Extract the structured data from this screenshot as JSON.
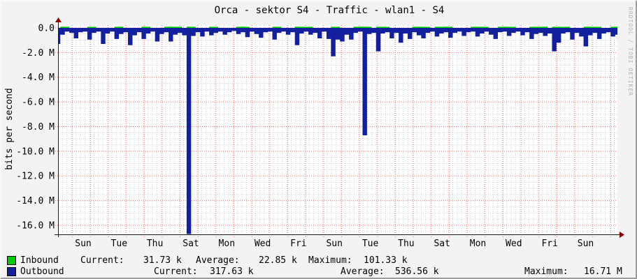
{
  "watermark": "RRDTOOL / TOBI OETIKER",
  "chart_data": {
    "type": "area",
    "title": "Orca - sektor S4 - Traffic - wlan1 - S4",
    "ylabel": "bits per second",
    "legend_position": "bottom-left",
    "grid": true,
    "x_span_days": 31,
    "sample_step_days": 0.25,
    "x_tick_labels": [
      "Sun",
      "Tue",
      "Thu",
      "Sat",
      "Mon",
      "Wed",
      "Fri",
      "Sun",
      "Tue",
      "Thu",
      "Sat",
      "Mon",
      "Wed",
      "Fri",
      "Sun"
    ],
    "y_tick_labels": [
      "0.0",
      "-2.0 M",
      "-4.0 M",
      "-6.0 M",
      "-8.0 M",
      "-10.0 M",
      "-12.0 M",
      "-14.0 M",
      "-16.0 M"
    ],
    "ylim_bps": [
      -16710000,
      150000
    ],
    "series": [
      {
        "name": "Inbound",
        "color": "#00cb00",
        "direction": "positive",
        "unit": "kbps",
        "values": [
          10,
          95,
          88,
          12,
          15,
          10,
          12,
          92,
          85,
          10,
          14,
          12,
          10,
          90,
          96,
          12,
          15,
          10,
          12,
          94,
          88,
          10,
          12,
          15,
          90,
          101,
          93,
          89,
          12,
          95,
          90,
          10,
          12,
          15,
          92,
          88,
          10,
          12,
          10,
          14,
          90,
          94,
          87,
          10,
          12,
          15,
          10,
          12,
          91,
          89,
          10,
          14,
          12,
          95,
          90,
          86,
          93,
          10,
          12,
          15,
          10,
          92,
          88,
          10,
          12,
          15,
          90,
          95,
          101,
          88,
          10,
          93,
          90,
          87,
          12,
          10,
          15,
          12,
          10,
          91,
          94,
          88,
          86,
          10,
          92,
          90,
          95,
          89,
          12,
          10,
          14,
          12,
          90,
          93,
          88,
          86,
          12,
          10,
          91,
          95,
          89,
          87,
          10,
          12,
          15,
          92,
          88,
          90,
          94,
          10,
          89,
          91,
          86,
          90,
          12,
          10,
          14,
          93,
          88,
          90,
          87,
          10,
          12,
          91,
          94
        ]
      },
      {
        "name": "Outbound",
        "color": "#12209f",
        "direction": "negative",
        "unit": "Mbps",
        "values": [
          1.3,
          0.55,
          0.3,
          0.4,
          0.85,
          0.35,
          0.3,
          0.95,
          0.4,
          0.3,
          1.3,
          0.45,
          0.3,
          0.9,
          0.5,
          0.35,
          1.4,
          0.6,
          0.35,
          0.9,
          0.45,
          0.3,
          1.1,
          0.5,
          0.35,
          1.1,
          0.55,
          0.4,
          0.6,
          16.71,
          0.65,
          0.35,
          0.7,
          0.3,
          0.6,
          0.4,
          0.3,
          0.55,
          0.35,
          0.25,
          0.5,
          0.35,
          0.75,
          0.3,
          0.5,
          0.8,
          0.35,
          0.3,
          0.95,
          0.4,
          0.3,
          0.55,
          0.35,
          1.4,
          0.45,
          0.3,
          0.55,
          0.4,
          0.85,
          0.3,
          0.9,
          2.3,
          0.95,
          1.1,
          0.55,
          0.95,
          0.4,
          0.3,
          8.71,
          0.5,
          0.4,
          1.9,
          0.45,
          0.35,
          0.85,
          0.4,
          1.2,
          0.45,
          0.9,
          0.35,
          0.6,
          0.85,
          0.4,
          0.3,
          0.7,
          0.45,
          0.35,
          0.8,
          0.4,
          0.3,
          0.65,
          0.35,
          0.3,
          0.7,
          0.45,
          0.3,
          0.55,
          0.9,
          0.35,
          0.3,
          0.65,
          0.4,
          0.3,
          0.6,
          0.35,
          0.9,
          0.5,
          0.4,
          0.65,
          0.45,
          1.9,
          1.2,
          0.45,
          0.35,
          0.95,
          0.4,
          0.7,
          1.5,
          0.6,
          0.4,
          0.9,
          0.45,
          0.35,
          0.7,
          0.55
        ]
      }
    ]
  },
  "legend": {
    "inbound": {
      "name": "Inbound",
      "color": "#00cb00",
      "current_label": "Current:",
      "current": "31.73 k",
      "average_label": "Average:",
      "average": "22.85 k",
      "maximum_label": "Maximum:",
      "maximum": "101.33 k"
    },
    "outbound": {
      "name": "Outbound",
      "color": "#12209f",
      "current_label": "Current:",
      "current": "317.63 k",
      "average_label": "Average:",
      "average": "536.56 k",
      "maximum_label": "Maximum:",
      "maximum": "16.71 M"
    }
  }
}
